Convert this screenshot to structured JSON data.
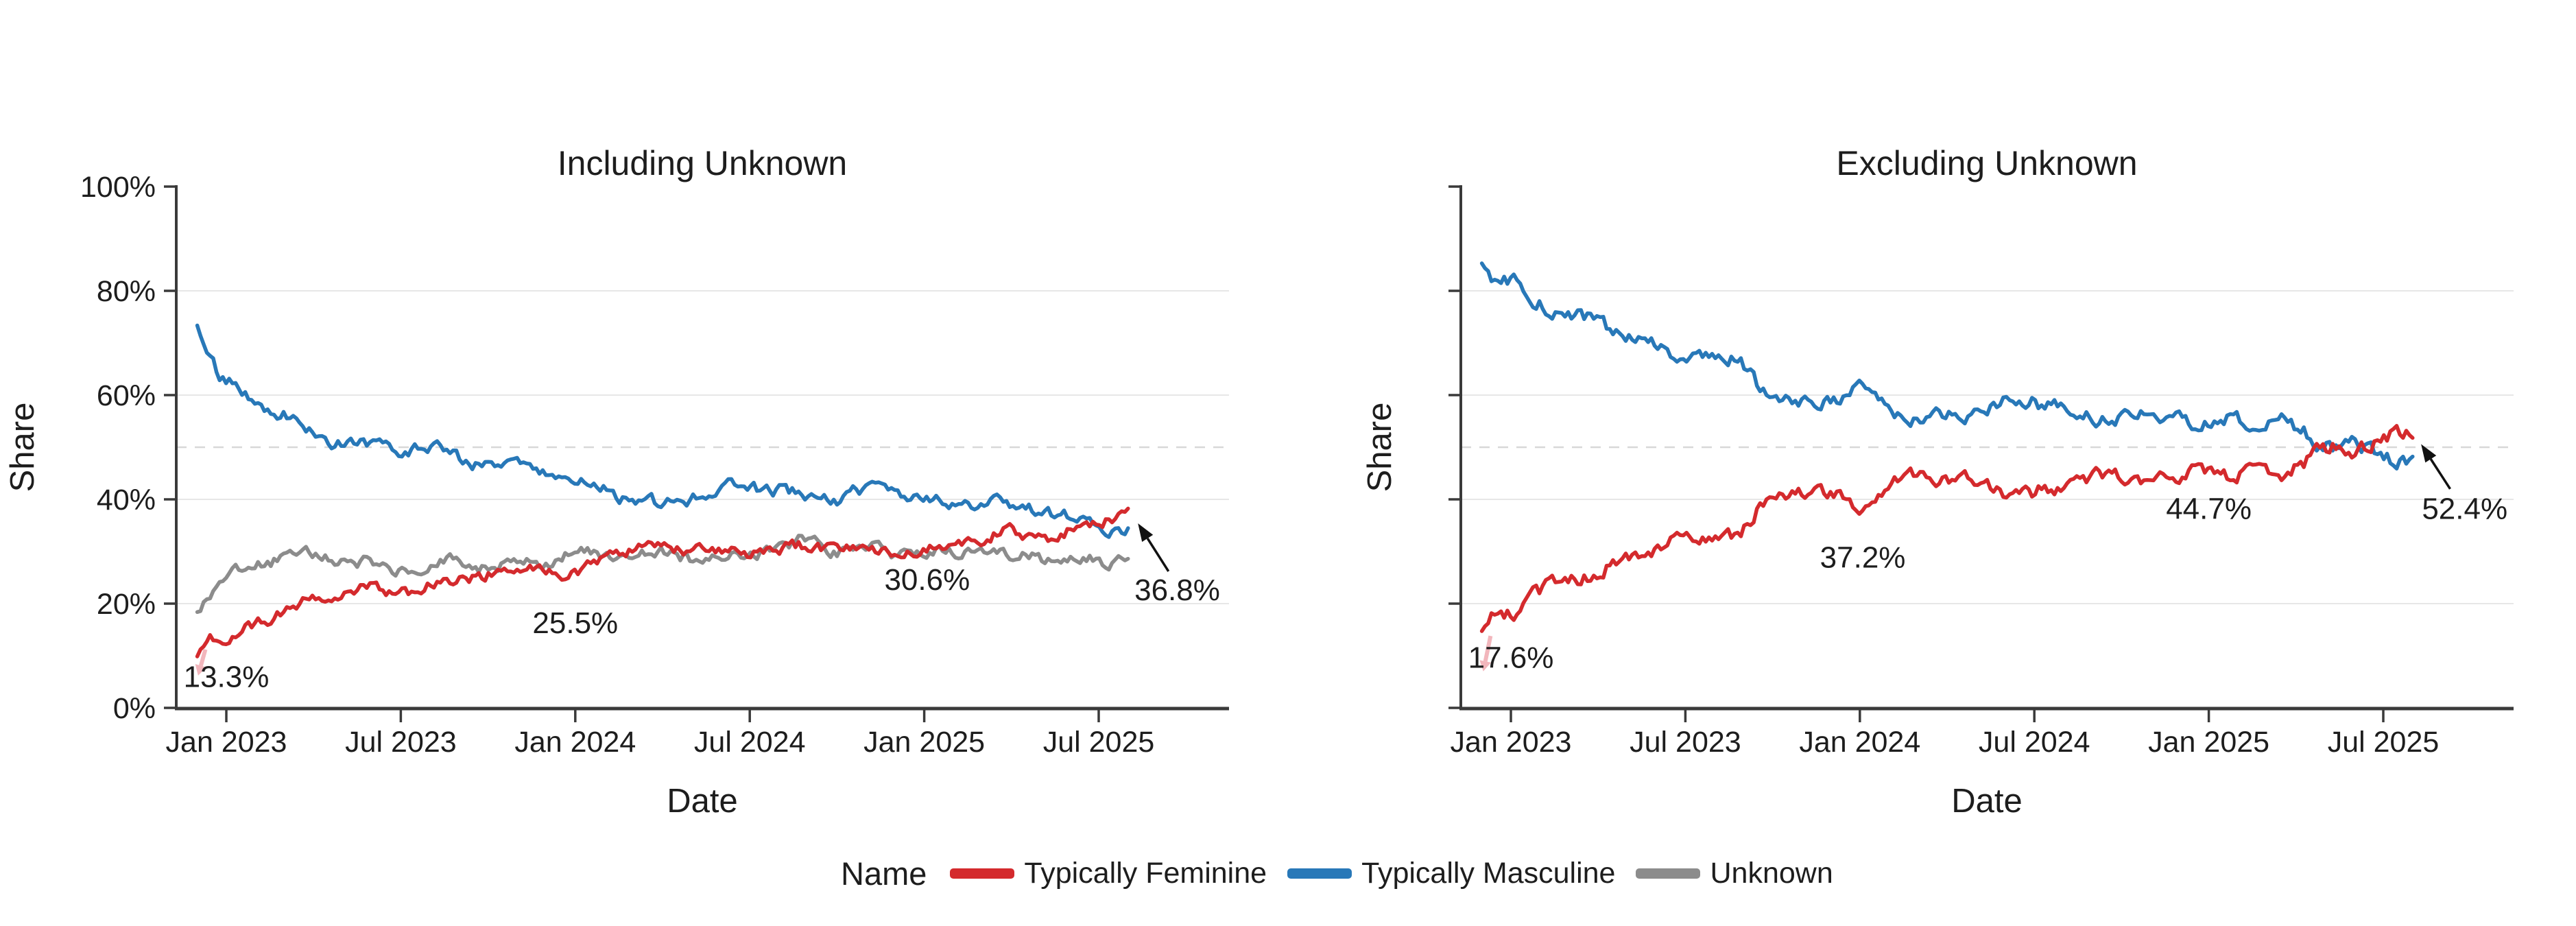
{
  "figure": {
    "background": "#ffffff",
    "text_color": "#1d1d1d",
    "axis_color": "#3a3a3a",
    "gridline_color": "#e7e7e7",
    "dashed_line_color": "#d8d8d8",
    "annotation_arrow_color": "#111111",
    "start_marker_color": "#f2b6bc"
  },
  "legend": {
    "title": "Name",
    "items": [
      {
        "label": "Typically Feminine",
        "color": "#d42a2d"
      },
      {
        "label": "Typically Masculine",
        "color": "#2878b8"
      },
      {
        "label": "Unknown",
        "color": "#8c8c8c"
      }
    ]
  },
  "chart_data": [
    {
      "type": "line",
      "title": "Including Unknown",
      "xlabel": "Date",
      "ylabel": "Share",
      "ylim": [
        0,
        100
      ],
      "grid_pcts": [
        20,
        40,
        60,
        80
      ],
      "reference_line_pct": 50,
      "show_y_tick_labels": true,
      "y_ticks": [
        {
          "label": "0%",
          "pct": 0
        },
        {
          "label": "20%",
          "pct": 20
        },
        {
          "label": "40%",
          "pct": 40
        },
        {
          "label": "60%",
          "pct": 60
        },
        {
          "label": "80%",
          "pct": 80
        },
        {
          "label": "100%",
          "pct": 100
        }
      ],
      "x_ticks": [
        {
          "label": "Jan 2023",
          "t": 1
        },
        {
          "label": "Jul 2023",
          "t": 7
        },
        {
          "label": "Jan 2024",
          "t": 13
        },
        {
          "label": "Jul 2024",
          "t": 19
        },
        {
          "label": "Jan 2025",
          "t": 25
        },
        {
          "label": "Jul 2025",
          "t": 31
        }
      ],
      "months": [
        "2022-12",
        "2023-01",
        "2023-02",
        "2023-03",
        "2023-04",
        "2023-05",
        "2023-06",
        "2023-07",
        "2023-08",
        "2023-09",
        "2023-10",
        "2023-11",
        "2023-12",
        "2024-01",
        "2024-02",
        "2024-03",
        "2024-04",
        "2024-05",
        "2024-06",
        "2024-07",
        "2024-08",
        "2024-09",
        "2024-10",
        "2024-11",
        "2024-12",
        "2025-01",
        "2025-02",
        "2025-03",
        "2025-04",
        "2025-05",
        "2025-06",
        "2025-07",
        "2025-08"
      ],
      "series": [
        {
          "name": "Typically Feminine",
          "color": "#d42a2d",
          "values": [
            13.3,
            13.7,
            16.5,
            18.5,
            20,
            21.5,
            23,
            23,
            23.5,
            24.5,
            25.5,
            26.5,
            27,
            25.5,
            29,
            30,
            31.5,
            30.5,
            30.5,
            30.5,
            30,
            30.5,
            31,
            30,
            30.5,
            30.6,
            31.5,
            32,
            33.5,
            33,
            34,
            36.2,
            36.8
          ]
        },
        {
          "name": "Typically Masculine",
          "color": "#2878b8",
          "values": [
            68,
            62,
            59.5,
            57,
            53,
            50.5,
            49.5,
            49.5,
            50.5,
            48.5,
            47,
            46,
            44.5,
            44,
            42.5,
            40.5,
            38.5,
            40,
            41.5,
            43,
            42,
            41,
            40,
            41,
            41.5,
            40.5,
            40,
            39.5,
            38.5,
            37.5,
            36.5,
            35.8,
            35
          ]
        },
        {
          "name": "Unknown",
          "color": "#8c8c8c",
          "values": [
            21,
            25,
            28,
            29,
            28.5,
            28.5,
            28,
            26.5,
            27.5,
            27.5,
            27,
            27,
            28.5,
            30.5,
            29,
            29.5,
            29.5,
            29,
            29.5,
            30,
            30.5,
            31.5,
            30,
            30.5,
            30,
            30,
            29.5,
            29.5,
            28.5,
            29.5,
            29,
            28,
            28.5
          ]
        }
      ],
      "annotations": [
        {
          "text": "13.3%",
          "t": 1.0,
          "y": 6.0
        },
        {
          "text": "25.5%",
          "t": 13.0,
          "y": 16.3
        },
        {
          "text": "30.6%",
          "t": 25.1,
          "y": 24.6
        },
        {
          "text": "36.8%",
          "t": 33.7,
          "y": 22.6
        }
      ],
      "arrows": [
        {
          "from_t": 33.4,
          "from_y": 26.2,
          "to_t": 32.35,
          "to_y": 35.4,
          "style": "black"
        },
        {
          "from_t": 0.28,
          "from_y": 11.2,
          "to_t": 0.03,
          "to_y": 6.2,
          "style": "pink"
        }
      ]
    },
    {
      "type": "line",
      "title": "Excluding Unknown",
      "xlabel": "Date",
      "ylabel": "Share",
      "ylim": [
        0,
        100
      ],
      "grid_pcts": [
        20,
        40,
        60,
        80
      ],
      "reference_line_pct": 50,
      "show_y_tick_labels": false,
      "y_ticks": [
        {
          "label": "0%",
          "pct": 0
        },
        {
          "label": "20%",
          "pct": 20
        },
        {
          "label": "40%",
          "pct": 40
        },
        {
          "label": "60%",
          "pct": 60
        },
        {
          "label": "80%",
          "pct": 80
        },
        {
          "label": "100%",
          "pct": 100
        }
      ],
      "x_ticks": [
        {
          "label": "Jan 2023",
          "t": 1
        },
        {
          "label": "Jul 2023",
          "t": 7
        },
        {
          "label": "Jan 2024",
          "t": 13
        },
        {
          "label": "Jul 2024",
          "t": 19
        },
        {
          "label": "Jan 2025",
          "t": 25
        },
        {
          "label": "Jul 2025",
          "t": 31
        }
      ],
      "months": [
        "2022-12",
        "2023-01",
        "2023-02",
        "2023-03",
        "2023-04",
        "2023-05",
        "2023-06",
        "2023-07",
        "2023-08",
        "2023-09",
        "2023-10",
        "2023-11",
        "2023-12",
        "2024-01",
        "2024-02",
        "2024-03",
        "2024-04",
        "2024-05",
        "2024-06",
        "2024-07",
        "2024-08",
        "2024-09",
        "2024-10",
        "2024-11",
        "2024-12",
        "2025-01",
        "2025-02",
        "2025-03",
        "2025-04",
        "2025-05",
        "2025-06",
        "2025-07",
        "2025-08"
      ],
      "series": [
        {
          "name": "Typically Feminine",
          "color": "#d42a2d",
          "values": [
            17.6,
            18.5,
            21.5,
            24.5,
            26.5,
            28.5,
            31,
            32.5,
            31.5,
            34,
            41,
            42,
            40.5,
            37.2,
            42,
            45,
            44.5,
            43.5,
            41.5,
            40,
            42.5,
            44.5,
            44,
            43.5,
            44,
            44.7,
            44.5,
            45,
            47,
            49.3,
            49.8,
            50.8,
            52.4
          ]
        },
        {
          "name": "Typically Masculine",
          "color": "#2878b8",
          "values": [
            82.4,
            81.5,
            78.5,
            75.5,
            73.5,
            71.5,
            69,
            67.5,
            68.5,
            66,
            59,
            58,
            59.5,
            62.8,
            58,
            55,
            55.5,
            56.5,
            58.5,
            60,
            57.5,
            55.5,
            56,
            56.5,
            56,
            55.3,
            55.5,
            55,
            53,
            50.7,
            50.2,
            49.2,
            47.6
          ]
        }
      ],
      "annotations": [
        {
          "text": "17.6%",
          "t": 1.0,
          "y": 9.7
        },
        {
          "text": "37.2%",
          "t": 13.1,
          "y": 28.9
        },
        {
          "text": "44.7%",
          "t": 25.0,
          "y": 38.2
        },
        {
          "text": "52.4%",
          "t": 33.8,
          "y": 38.2
        }
      ],
      "arrows": [
        {
          "from_t": 33.3,
          "from_y": 42.0,
          "to_t": 32.3,
          "to_y": 50.6,
          "style": "black"
        },
        {
          "from_t": 0.3,
          "from_y": 13.8,
          "to_t": 0.05,
          "to_y": 7.0,
          "style": "pink"
        }
      ]
    }
  ]
}
